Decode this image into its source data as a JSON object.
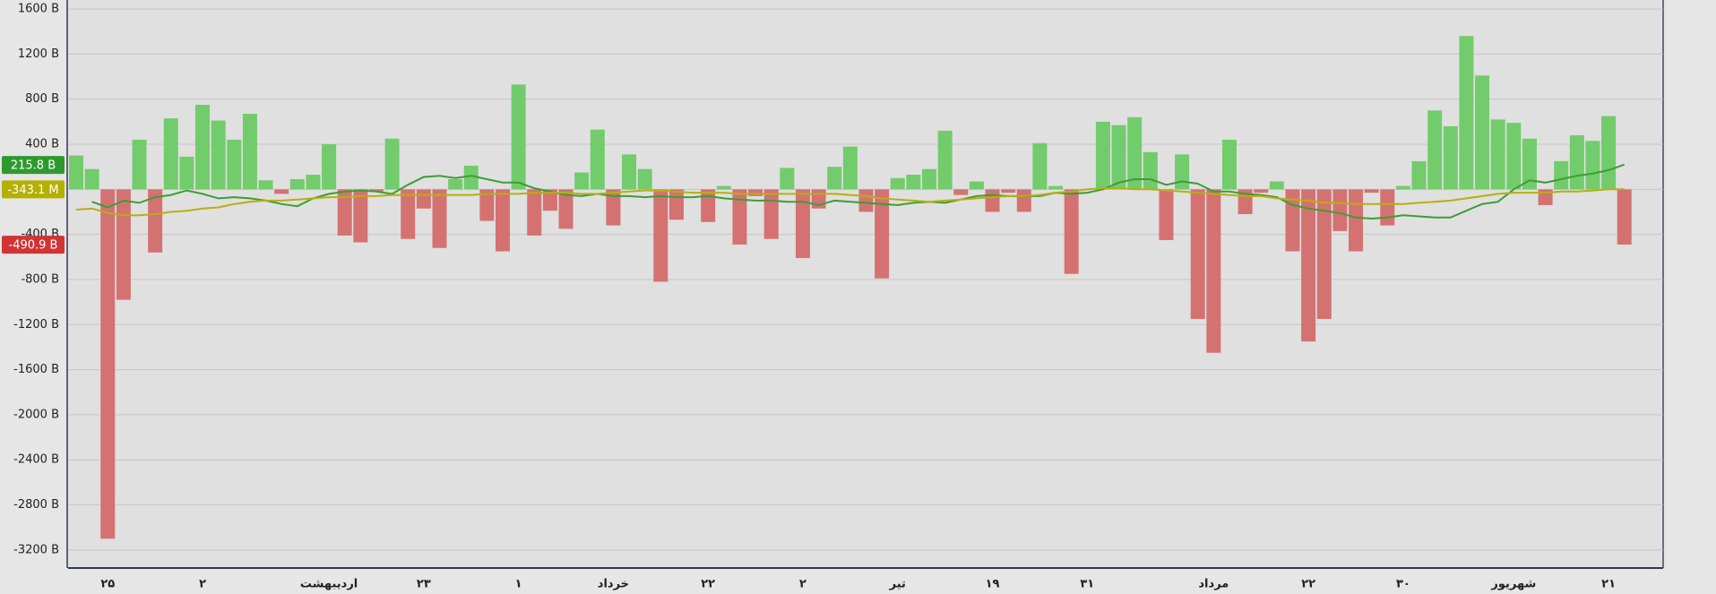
{
  "chart_data": {
    "type": "bar",
    "pos_color": "#72cc6c",
    "neg_color": "#d47272",
    "ylim": [
      -3360,
      1680
    ],
    "yticks": [
      {
        "value": 1600,
        "label": "1600 B"
      },
      {
        "value": 1200,
        "label": "1200 B"
      },
      {
        "value": 800,
        "label": "800 B"
      },
      {
        "value": 400,
        "label": "400 B"
      },
      {
        "value": -400,
        "label": "-400 B"
      },
      {
        "value": -800,
        "label": "-800 B"
      },
      {
        "value": -1200,
        "label": "-1200 B"
      },
      {
        "value": -1600,
        "label": "-1600 B"
      },
      {
        "value": -2000,
        "label": "-2000 B"
      },
      {
        "value": -2400,
        "label": "-2400 B"
      },
      {
        "value": -2800,
        "label": "-2800 B"
      },
      {
        "value": -3200,
        "label": "-3200 B"
      }
    ],
    "grid": true,
    "categories": [
      null,
      null,
      "۲۵",
      null,
      null,
      null,
      null,
      null,
      "۲",
      null,
      null,
      null,
      null,
      null,
      null,
      null,
      "اردیبهشت",
      null,
      null,
      null,
      null,
      null,
      "۲۳",
      null,
      null,
      null,
      null,
      null,
      "۱",
      null,
      null,
      null,
      null,
      null,
      "خرداد",
      null,
      null,
      null,
      null,
      null,
      "۲۲",
      null,
      null,
      null,
      null,
      null,
      "۲",
      null,
      null,
      null,
      null,
      null,
      "تیر",
      null,
      null,
      null,
      null,
      null,
      "۱۹",
      null,
      null,
      null,
      null,
      null,
      "۳۱",
      null,
      null,
      null,
      null,
      null,
      null,
      null,
      "مرداد",
      null,
      null,
      null,
      null,
      null,
      "۲۲",
      null,
      null,
      null,
      null,
      null,
      "۳۰",
      null,
      null,
      null,
      null,
      null,
      null,
      "شهریور",
      null,
      null,
      null,
      null,
      null,
      "۲۱",
      null
    ],
    "values": [
      300,
      180,
      -3100,
      -980,
      440,
      -560,
      630,
      290,
      750,
      610,
      440,
      670,
      80,
      -40,
      90,
      130,
      400,
      -410,
      -470,
      -20,
      450,
      -440,
      -170,
      -520,
      90,
      210,
      -280,
      -550,
      930,
      -410,
      -190,
      -350,
      150,
      530,
      -320,
      310,
      180,
      -820,
      -270,
      0,
      -290,
      30,
      -490,
      -60,
      -440,
      190,
      -610,
      -170,
      200,
      380,
      -200,
      -790,
      100,
      130,
      180,
      520,
      -50,
      70,
      -200,
      -30,
      -200,
      410,
      30,
      -750,
      0,
      600,
      570,
      640,
      330,
      -450,
      310,
      -1150,
      -1450,
      440,
      -220,
      -30,
      70,
      -550,
      -1350,
      -1150,
      -370,
      -550,
      -30,
      -320,
      30,
      250,
      700,
      560,
      1360,
      1010,
      620,
      590,
      450,
      -140,
      250,
      480,
      430,
      650,
      -490
    ],
    "lines": [
      {
        "color": "#3c9e34",
        "values": [
          null,
          -110,
          -160,
          -100,
          -120,
          -70,
          -50,
          -10,
          -40,
          -80,
          -70,
          -80,
          -100,
          -130,
          -150,
          -80,
          -40,
          -20,
          -10,
          -20,
          -40,
          40,
          110,
          120,
          100,
          120,
          90,
          60,
          60,
          10,
          -20,
          -50,
          -60,
          -40,
          -60,
          -60,
          -70,
          -60,
          -70,
          -70,
          -60,
          -80,
          -90,
          -100,
          -100,
          -110,
          -110,
          -140,
          -100,
          -110,
          -120,
          -130,
          -140,
          -120,
          -110,
          -120,
          -90,
          -60,
          -50,
          -60,
          -60,
          -60,
          -30,
          -40,
          -30,
          0,
          60,
          90,
          90,
          40,
          70,
          50,
          -20,
          -20,
          -40,
          -50,
          -70,
          -140,
          -170,
          -190,
          -210,
          -250,
          -260,
          -250,
          -230,
          -240,
          -250,
          -250,
          -190,
          -130,
          -110,
          0,
          80,
          60,
          90,
          120,
          140,
          170,
          220
        ]
      },
      {
        "color": "#b8ae12",
        "values": [
          -180,
          -170,
          -210,
          -230,
          -230,
          -220,
          -200,
          -190,
          -170,
          -160,
          -130,
          -110,
          -100,
          -100,
          -90,
          -80,
          -70,
          -70,
          -60,
          -60,
          -50,
          -50,
          -50,
          -50,
          -50,
          -50,
          -40,
          -40,
          -40,
          -30,
          -30,
          -30,
          -40,
          -40,
          -30,
          -20,
          -10,
          -10,
          -20,
          -30,
          -30,
          -30,
          -40,
          -40,
          -40,
          -40,
          -40,
          -40,
          -40,
          -50,
          -60,
          -80,
          -90,
          -100,
          -110,
          -100,
          -90,
          -80,
          -70,
          -60,
          -60,
          -50,
          -30,
          -20,
          0,
          10,
          10,
          0,
          0,
          -10,
          -20,
          -30,
          -40,
          -50,
          -60,
          -60,
          -80,
          -90,
          -100,
          -120,
          -120,
          -130,
          -130,
          -130,
          -130,
          -120,
          -110,
          -100,
          -80,
          -60,
          -40,
          -30,
          -30,
          -30,
          -20,
          -20,
          -10,
          0,
          0
        ]
      }
    ],
    "annotations": [
      {
        "text": "215.8 B",
        "value": 215.8,
        "color": "#2e9a2e"
      },
      {
        "text": "-343.1 M",
        "value": -0.3431,
        "color": "#b5b000"
      },
      {
        "text": "-490.9 B",
        "value": -490.9,
        "color": "#d03434"
      }
    ]
  }
}
